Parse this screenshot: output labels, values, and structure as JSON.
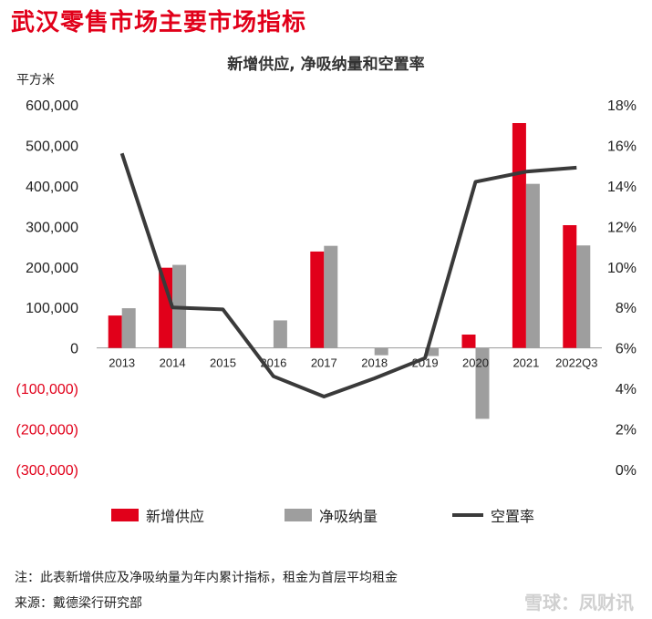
{
  "page": {
    "title": "武汉零售市场主要市场指标",
    "note": "注：此表新增供应及净吸纳量为年内累计指标，租金为首层平均租金",
    "source": "来源：戴德梁行研究部",
    "watermark": "雪球：凤财讯"
  },
  "legend": {
    "supply": "新增供应",
    "absorption": "净吸纳量",
    "vacancy": "空置率"
  },
  "colors": {
    "supply": "#e1001a",
    "absorption": "#9e9e9e",
    "vacancy": "#3a3a3a",
    "negative_tick": "#e1001a"
  },
  "chart_data": {
    "type": "bar",
    "title": "新增供应, 净吸纳量和空置率",
    "ylabel": "平方米",
    "categories": [
      "2013",
      "2014",
      "2015",
      "2016",
      "2017",
      "2018",
      "2019",
      "2020",
      "2021",
      "2022Q3"
    ],
    "series": [
      {
        "name": "新增供应",
        "kind": "bar",
        "axis": "left",
        "values": [
          80000,
          198000,
          0,
          0,
          238000,
          0,
          0,
          33000,
          555000,
          303000
        ]
      },
      {
        "name": "净吸纳量",
        "kind": "bar",
        "axis": "left",
        "values": [
          98000,
          205000,
          0,
          68000,
          252000,
          -18000,
          -20000,
          -175000,
          405000,
          253000
        ]
      },
      {
        "name": "空置率",
        "kind": "line",
        "axis": "right",
        "values": [
          15.6,
          8.0,
          7.9,
          4.6,
          3.6,
          4.5,
          5.5,
          14.2,
          14.7,
          14.9
        ]
      }
    ],
    "left_axis": {
      "ylim": [
        -300000,
        600000
      ],
      "ticks": [
        600000,
        500000,
        400000,
        300000,
        200000,
        100000,
        0,
        -100000,
        -200000,
        -300000
      ],
      "tick_labels": [
        "600,000",
        "500,000",
        "400,000",
        "300,000",
        "200,000",
        "100,000",
        "0",
        "(100,000)",
        "(200,000)",
        "(300,000)"
      ]
    },
    "right_axis": {
      "ylim": [
        0,
        18
      ],
      "ticks": [
        18,
        16,
        14,
        12,
        10,
        8,
        6,
        4,
        2,
        0
      ],
      "tick_labels": [
        "18%",
        "16%",
        "14%",
        "12%",
        "10%",
        "8%",
        "6%",
        "4%",
        "2%",
        "0%"
      ]
    },
    "grid": false,
    "legend_position": "bottom"
  }
}
